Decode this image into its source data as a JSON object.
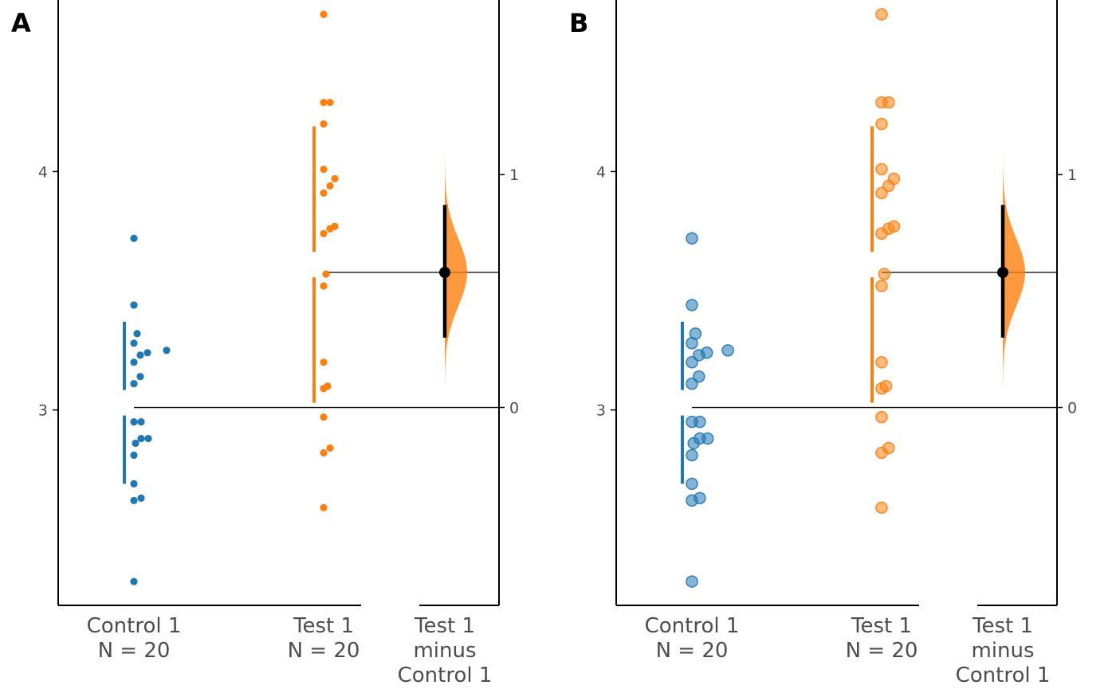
{
  "colors": {
    "control": "#1f77b4",
    "test": "#ff7f0e",
    "delta_fill": "#ff7f0e",
    "axis": "#000000",
    "tick_text": "#4d4d4d"
  },
  "chart_data": [
    {
      "type": "scatter",
      "panel_label": "A",
      "marker_style": "solid-small",
      "categories": [
        {
          "line1": "Control 1",
          "line2": "N = 20"
        },
        {
          "line1": "Test 1",
          "line2": "N = 20"
        },
        {
          "line1": "Test 1",
          "line2": "minus",
          "line3": "Control 1"
        }
      ],
      "raw_axis": {
        "ylim": [
          2.18,
          4.72
        ],
        "ticks": [
          3,
          4
        ]
      },
      "delta_axis": {
        "ylim": [
          -0.85,
          1.75
        ],
        "ticks": [
          0,
          1
        ]
      },
      "series": [
        {
          "name": "Control 1",
          "values": [
            3.72,
            3.44,
            3.32,
            3.28,
            3.25,
            3.24,
            3.23,
            3.2,
            3.14,
            3.11,
            2.95,
            2.95,
            2.88,
            2.88,
            2.86,
            2.81,
            2.69,
            2.63,
            2.62,
            2.28
          ],
          "mean": 3.03,
          "sd": 0.34
        },
        {
          "name": "Test 1",
          "values": [
            4.66,
            4.29,
            4.29,
            4.2,
            4.01,
            3.97,
            3.94,
            3.91,
            3.77,
            3.76,
            3.74,
            3.57,
            3.52,
            3.2,
            3.1,
            3.09,
            2.97,
            2.84,
            2.82,
            2.59
          ],
          "mean": 3.61,
          "sd": 0.58
        }
      ],
      "effect_size": {
        "mean_diff": 0.58,
        "ci": [
          0.3,
          0.87
        ],
        "distribution_range": [
          0.1,
          1.12
        ]
      }
    },
    {
      "type": "scatter",
      "panel_label": "B",
      "marker_style": "translucent-large",
      "categories": [
        {
          "line1": "Control 1",
          "line2": "N = 20"
        },
        {
          "line1": "Test 1",
          "line2": "N = 20"
        },
        {
          "line1": "Test 1",
          "line2": "minus",
          "line3": "Control 1"
        }
      ],
      "raw_axis": {
        "ylim": [
          2.18,
          4.72
        ],
        "ticks": [
          3,
          4
        ]
      },
      "delta_axis": {
        "ylim": [
          -0.85,
          1.75
        ],
        "ticks": [
          0,
          1
        ]
      },
      "series": [
        {
          "name": "Control 1",
          "values": [
            3.72,
            3.44,
            3.32,
            3.28,
            3.25,
            3.24,
            3.23,
            3.2,
            3.14,
            3.11,
            2.95,
            2.95,
            2.88,
            2.88,
            2.86,
            2.81,
            2.69,
            2.63,
            2.62,
            2.28
          ],
          "mean": 3.03,
          "sd": 0.34
        },
        {
          "name": "Test 1",
          "values": [
            4.66,
            4.29,
            4.29,
            4.2,
            4.01,
            3.97,
            3.94,
            3.91,
            3.77,
            3.76,
            3.74,
            3.57,
            3.52,
            3.2,
            3.1,
            3.09,
            2.97,
            2.84,
            2.82,
            2.59
          ],
          "mean": 3.61,
          "sd": 0.58
        }
      ],
      "effect_size": {
        "mean_diff": 0.58,
        "ci": [
          0.3,
          0.87
        ],
        "distribution_range": [
          0.1,
          1.12
        ]
      }
    }
  ]
}
